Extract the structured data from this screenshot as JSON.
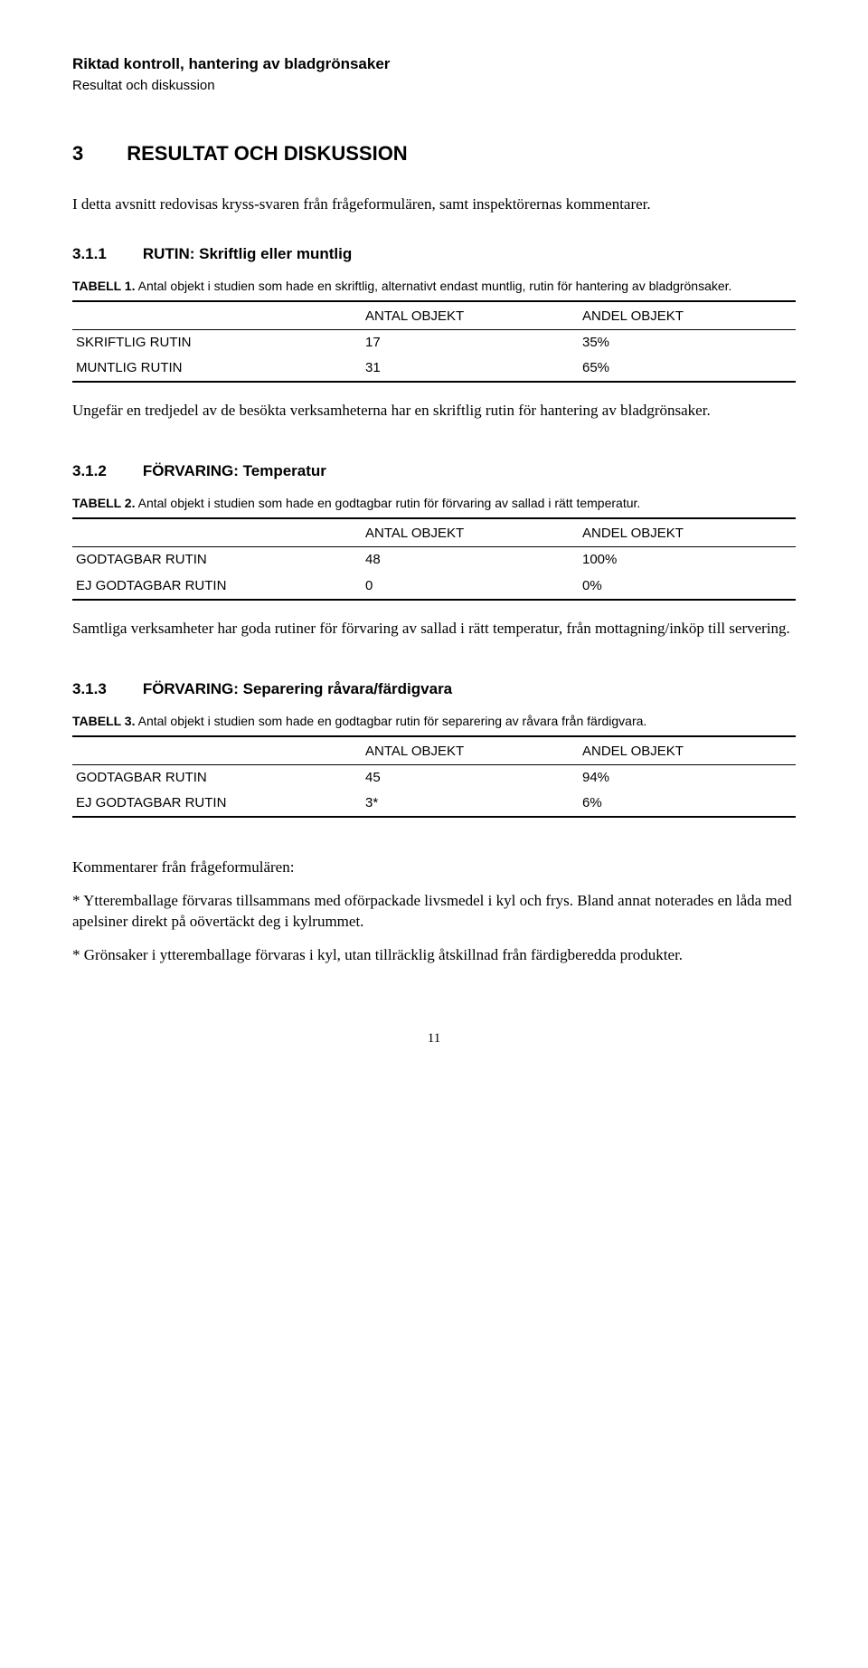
{
  "header": {
    "title": "Riktad kontroll, hantering av bladgrönsaker",
    "sub": "Resultat och diskussion"
  },
  "section": {
    "num": "3",
    "title": "RESULTAT OCH DISKUSSION"
  },
  "intro": "I detta avsnitt redovisas kryss-svaren från frågeformulären, samt inspektörernas kommentarer.",
  "s311": {
    "num": "3.1.1",
    "title": "RUTIN: Skriftlig eller muntlig",
    "caption_label": "TABELL 1.",
    "caption": "Antal objekt i studien som hade en skriftlig, alternativt endast muntlig, rutin för hantering av bladgrönsaker.",
    "col_a": "ANTAL OBJEKT",
    "col_b": "ANDEL OBJEKT",
    "row1": {
      "label": "SKRIFTLIG RUTIN",
      "a": "17",
      "b": "35%"
    },
    "row2": {
      "label": "MUNTLIG RUTIN",
      "a": "31",
      "b": "65%"
    },
    "para": "Ungefär en tredjedel av de besökta verksamheterna har en skriftlig rutin för hantering av bladgrönsaker."
  },
  "s312": {
    "num": "3.1.2",
    "title": "FÖRVARING: Temperatur",
    "caption_label": "TABELL 2.",
    "caption": "Antal objekt i studien som hade en godtagbar rutin för förvaring av sallad i rätt temperatur.",
    "col_a": "ANTAL OBJEKT",
    "col_b": "ANDEL OBJEKT",
    "row1": {
      "label": "GODTAGBAR RUTIN",
      "a": "48",
      "b": "100%"
    },
    "row2": {
      "label": "EJ GODTAGBAR RUTIN",
      "a": "0",
      "b": "0%"
    },
    "para": "Samtliga verksamheter har goda rutiner för förvaring av sallad i rätt temperatur, från mottagning/inköp till servering."
  },
  "s313": {
    "num": "3.1.3",
    "title": "FÖRVARING: Separering råvara/färdigvara",
    "caption_label": "TABELL 3.",
    "caption": "Antal objekt i studien som hade en godtagbar rutin för separering av råvara från färdigvara.",
    "col_a": "ANTAL OBJEKT",
    "col_b": "ANDEL OBJEKT",
    "row1": {
      "label": "GODTAGBAR RUTIN",
      "a": "45",
      "b": "94%"
    },
    "row2": {
      "label": "EJ GODTAGBAR RUTIN",
      "a": "3*",
      "b": "6%"
    }
  },
  "comments": {
    "head": "Kommentarer från frågeformulären:",
    "c1": "* Ytteremballage förvaras tillsammans med oförpackade livsmedel i kyl och frys. Bland annat noterades en låda med apelsiner direkt på oövertäckt deg i kylrummet.",
    "c2": "* Grönsaker i ytteremballage förvaras i kyl, utan tillräcklig åtskillnad från färdigberedda produkter."
  },
  "pagenum": "11"
}
